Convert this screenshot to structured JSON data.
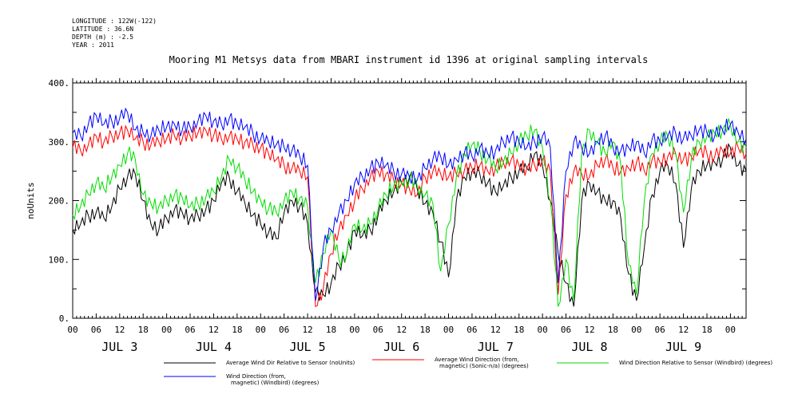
{
  "meta": {
    "longitude": "LONGITUDE : 122W(-122)",
    "latitude": "LATITUDE : 36.6N",
    "depth": "DEPTH (m) : -2.5",
    "year": "YEAR : 2011"
  },
  "chart_data": {
    "type": "line",
    "title": "Mooring M1 Metsys data from MBARI instrument id 1396 at original sampling intervals",
    "ylabel": "noUnits",
    "ylim": [
      0,
      400
    ],
    "yticks": [
      "0.",
      "100.",
      "200.",
      "300.",
      "400."
    ],
    "xlim_hours": [
      0,
      172
    ],
    "hour_tick_labels": [
      "00",
      "06",
      "12",
      "18"
    ],
    "day_labels": [
      "JUL 3",
      "JUL 4",
      "JUL 5",
      "JUL 6",
      "JUL 7",
      "JUL 8",
      "JUL 9"
    ],
    "grid": false,
    "legend_position": "bottom",
    "series": [
      {
        "name": "Average Wind Dir Relative to Sensor (noUnits)",
        "color": "#000000",
        "x": [
          0,
          2,
          4,
          6,
          8,
          10,
          12,
          14,
          16,
          18,
          20,
          22,
          24,
          26,
          28,
          30,
          32,
          34,
          36,
          38,
          40,
          42,
          44,
          46,
          48,
          50,
          52,
          54,
          56,
          58,
          60,
          62,
          64,
          66,
          68,
          70,
          72,
          74,
          76,
          78,
          80,
          82,
          84,
          86,
          88,
          90,
          92,
          94,
          96,
          98,
          100,
          102,
          104,
          106,
          108,
          110,
          112,
          114,
          116,
          118,
          120,
          122,
          124,
          126,
          128,
          130,
          132,
          134,
          136,
          138,
          140,
          142,
          144,
          146,
          148,
          150,
          152,
          154,
          156,
          158,
          160,
          162,
          164,
          166,
          168,
          170,
          172
        ],
        "values": [
          150,
          160,
          175,
          180,
          170,
          190,
          220,
          240,
          245,
          200,
          160,
          150,
          170,
          185,
          180,
          170,
          175,
          185,
          200,
          230,
          240,
          215,
          195,
          175,
          160,
          145,
          135,
          180,
          200,
          190,
          160,
          45,
          40,
          60,
          90,
          110,
          150,
          140,
          150,
          175,
          200,
          215,
          230,
          240,
          220,
          195,
          180,
          130,
          70,
          200,
          240,
          250,
          245,
          230,
          215,
          225,
          240,
          250,
          255,
          280,
          260,
          200,
          110,
          60,
          20,
          200,
          230,
          215,
          200,
          200,
          170,
          75,
          30,
          120,
          210,
          250,
          260,
          230,
          120,
          220,
          250,
          260,
          265,
          270,
          290,
          260,
          250
        ]
      },
      {
        "name": "Average Wind Direction (from, magnetic) (Sonic-n/a) (degrees)",
        "color": "#ff0000",
        "x": [
          0,
          2,
          4,
          6,
          8,
          10,
          12,
          14,
          16,
          18,
          20,
          22,
          24,
          26,
          28,
          30,
          32,
          34,
          36,
          38,
          40,
          42,
          44,
          46,
          48,
          50,
          52,
          54,
          56,
          58,
          60,
          62,
          64,
          66,
          68,
          70,
          72,
          74,
          76,
          78,
          80,
          82,
          84,
          86,
          88,
          90,
          92,
          94,
          96,
          98,
          100,
          102,
          104,
          106,
          108,
          110,
          112,
          114,
          116,
          118,
          120,
          122,
          124,
          126,
          128,
          130,
          132,
          134,
          136,
          138,
          140,
          142,
          144,
          146,
          148,
          150,
          152,
          154,
          156,
          158,
          160,
          162,
          164,
          166,
          168,
          170,
          172
        ],
        "values": [
          290,
          285,
          295,
          310,
          300,
          310,
          315,
          320,
          305,
          300,
          295,
          300,
          305,
          310,
          305,
          310,
          315,
          320,
          310,
          305,
          310,
          305,
          300,
          295,
          290,
          280,
          270,
          260,
          255,
          250,
          240,
          20,
          50,
          110,
          150,
          175,
          200,
          220,
          240,
          250,
          245,
          235,
          230,
          220,
          210,
          240,
          250,
          245,
          240,
          245,
          250,
          255,
          260,
          250,
          255,
          265,
          270,
          260,
          255,
          260,
          270,
          250,
          40,
          210,
          250,
          245,
          240,
          260,
          270,
          255,
          250,
          255,
          265,
          250,
          270,
          265,
          275,
          280,
          270,
          275,
          285,
          280,
          275,
          285,
          280,
          290,
          280
        ]
      },
      {
        "name": "Wind Direction Relative to Sensor (Windbird) (degrees)",
        "color": "#00dd00",
        "x": [
          0,
          2,
          4,
          6,
          8,
          10,
          12,
          14,
          16,
          18,
          20,
          22,
          24,
          26,
          28,
          30,
          32,
          34,
          36,
          38,
          40,
          42,
          44,
          46,
          48,
          50,
          52,
          54,
          56,
          58,
          60,
          62,
          64,
          66,
          68,
          70,
          72,
          74,
          76,
          78,
          80,
          82,
          84,
          86,
          88,
          90,
          92,
          94,
          96,
          98,
          100,
          102,
          104,
          106,
          108,
          110,
          112,
          114,
          116,
          118,
          120,
          122,
          124,
          126,
          128,
          130,
          132,
          134,
          136,
          138,
          140,
          142,
          144,
          146,
          148,
          150,
          152,
          154,
          156,
          158,
          160,
          162,
          164,
          166,
          168,
          170,
          172
        ],
        "values": [
          175,
          190,
          210,
          230,
          220,
          240,
          260,
          280,
          270,
          210,
          195,
          190,
          200,
          210,
          205,
          190,
          195,
          205,
          215,
          240,
          270,
          255,
          235,
          215,
          200,
          185,
          180,
          200,
          215,
          205,
          190,
          60,
          110,
          150,
          100,
          110,
          160,
          150,
          160,
          185,
          210,
          225,
          230,
          235,
          225,
          210,
          195,
          80,
          160,
          240,
          280,
          295,
          285,
          270,
          255,
          265,
          280,
          300,
          310,
          320,
          290,
          200,
          20,
          100,
          30,
          280,
          320,
          300,
          280,
          300,
          260,
          90,
          40,
          200,
          280,
          300,
          310,
          280,
          180,
          270,
          300,
          310,
          315,
          320,
          330,
          300,
          290
        ]
      },
      {
        "name": "Wind Direction (from, magnetic) (Windbird) (degrees)",
        "color": "#0000ff",
        "x": [
          0,
          2,
          4,
          6,
          8,
          10,
          12,
          14,
          16,
          18,
          20,
          22,
          24,
          26,
          28,
          30,
          32,
          34,
          36,
          38,
          40,
          42,
          44,
          46,
          48,
          50,
          52,
          54,
          56,
          58,
          60,
          62,
          64,
          66,
          68,
          70,
          72,
          74,
          76,
          78,
          80,
          82,
          84,
          86,
          88,
          90,
          92,
          94,
          96,
          98,
          100,
          102,
          104,
          106,
          108,
          110,
          112,
          114,
          116,
          118,
          120,
          122,
          124,
          126,
          128,
          130,
          132,
          134,
          136,
          138,
          140,
          142,
          144,
          146,
          148,
          150,
          152,
          154,
          156,
          158,
          160,
          162,
          164,
          166,
          168,
          170,
          172
        ],
        "values": [
          315,
          310,
          330,
          345,
          330,
          335,
          340,
          350,
          320,
          315,
          310,
          320,
          325,
          330,
          320,
          325,
          335,
          345,
          335,
          330,
          340,
          330,
          325,
          315,
          305,
          300,
          295,
          290,
          285,
          275,
          260,
          30,
          120,
          150,
          180,
          200,
          230,
          240,
          255,
          265,
          260,
          250,
          245,
          240,
          235,
          255,
          270,
          275,
          260,
          270,
          280,
          275,
          290,
          280,
          285,
          300,
          310,
          300,
          290,
          300,
          310,
          290,
          60,
          250,
          300,
          290,
          280,
          300,
          310,
          290,
          285,
          290,
          300,
          280,
          305,
          300,
          310,
          315,
          305,
          310,
          320,
          315,
          310,
          320,
          330,
          315,
          305
        ]
      }
    ],
    "legend": [
      {
        "line1": "Average Wind Dir Relative to Sensor (noUnits)",
        "line2": "",
        "color": "#000000"
      },
      {
        "line1": "Average Wind Direction (from,",
        "line2": "magnetic) (Sonic-n/a) (degrees)",
        "color": "#ff0000"
      },
      {
        "line1": "Wind Direction Relative to Sensor (Windbird) (degrees)",
        "line2": "",
        "color": "#00dd00"
      },
      {
        "line1": "Wind Direction (from,",
        "line2": "magnetic) (Windbird) (degrees)",
        "color": "#0000ff"
      }
    ]
  }
}
